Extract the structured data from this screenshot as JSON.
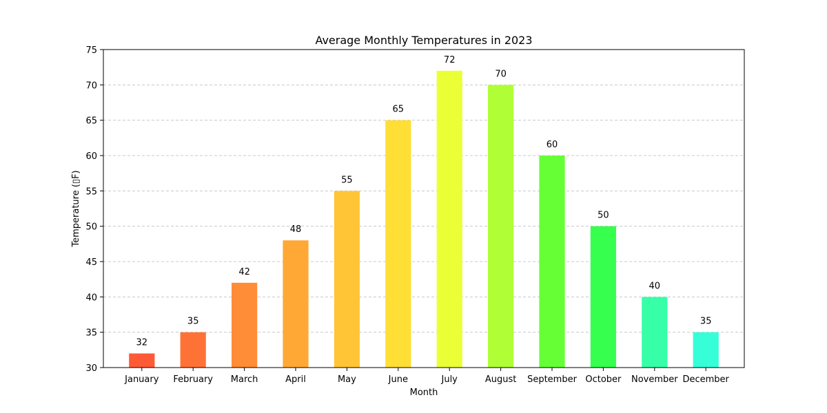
{
  "chart_data": {
    "type": "bar",
    "title": "Average Monthly Temperatures in 2023",
    "xlabel": "Month",
    "ylabel": "Temperature (▯F)",
    "categories": [
      "January",
      "February",
      "March",
      "April",
      "May",
      "June",
      "July",
      "August",
      "September",
      "October",
      "November",
      "December"
    ],
    "values": [
      32,
      35,
      42,
      48,
      55,
      65,
      72,
      70,
      60,
      50,
      40,
      35
    ],
    "colors": [
      "#ff5a36",
      "#ff7236",
      "#ff8c36",
      "#ffa836",
      "#ffc536",
      "#ffde36",
      "#ebff36",
      "#b0ff36",
      "#66ff36",
      "#36ff4e",
      "#36ffa8",
      "#36ffd8"
    ],
    "ylim": [
      30,
      75
    ],
    "yticks": [
      30,
      35,
      40,
      45,
      50,
      55,
      60,
      65,
      70,
      75
    ],
    "grid": "y-dashed",
    "legend": "none"
  }
}
